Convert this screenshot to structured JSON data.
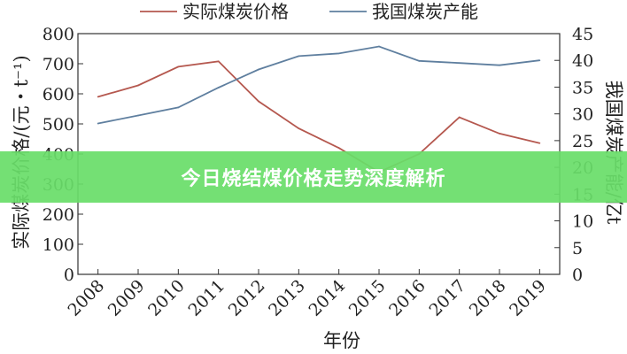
{
  "banner": {
    "text": "今日烧结煤价格走势深度解析"
  },
  "chart_data": {
    "type": "line",
    "xlabel": "年份",
    "ylabel_left": "实际煤炭价格/(元・t⁻¹)",
    "ylabel_right": "我国煤炭产能/亿t",
    "ylim_left": [
      0,
      800
    ],
    "ylim_right": [
      0,
      45
    ],
    "yticks_left": [
      "0",
      "100",
      "200",
      "300",
      "400",
      "500",
      "600",
      "700",
      "800"
    ],
    "yticks_right": [
      "0",
      "5",
      "10",
      "15",
      "20",
      "25",
      "30",
      "35",
      "40",
      "45"
    ],
    "categories": [
      "2008",
      "2009",
      "2010",
      "2011",
      "2012",
      "2013",
      "2014",
      "2015",
      "2016",
      "2017",
      "2018",
      "2019"
    ],
    "legend_position": "top",
    "series": [
      {
        "name": "实际煤炭价格",
        "axis": "left",
        "color": "#b5584f",
        "values": [
          590,
          628,
          690,
          708,
          575,
          485,
          420,
          340,
          400,
          522,
          468,
          436
        ]
      },
      {
        "name": "我国煤炭产能",
        "axis": "right",
        "color": "#5f7f9f",
        "values": [
          28.2,
          29.7,
          31.2,
          34.9,
          38.3,
          40.8,
          41.3,
          42.6,
          39.9,
          39.5,
          39.1,
          40.0
        ]
      }
    ]
  }
}
